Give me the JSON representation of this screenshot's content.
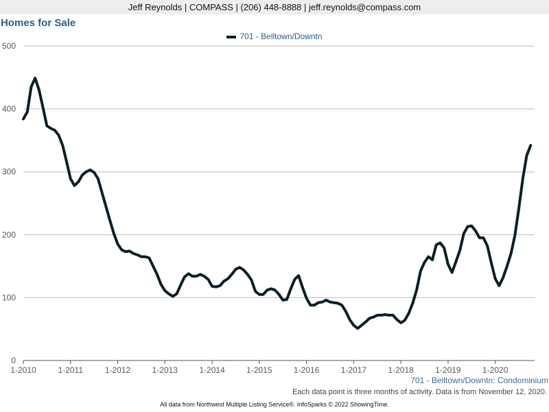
{
  "header": {
    "text": "Jeff Reynolds | COMPASS | (206) 448-8888 | jeff.reynolds@compass.com"
  },
  "footer": {
    "subtitle": "701 - Belltown/Downtn: Condominium",
    "note": "Each data point is three months of activity. Data is from November 12, 2020.",
    "source": "All data from Northwest Multiple Listing Service®. InfoSparks © 2022 ShowingTime."
  },
  "colors": {
    "line": "#0c1f26",
    "title": "#2e5c8a",
    "grid": "#bbbbbb",
    "axis_text": "#555555"
  },
  "chart_data": {
    "type": "line",
    "title": "Homes for Sale",
    "xlabel": "",
    "ylabel": "",
    "legend_position": "top-center",
    "grid": true,
    "ylim": [
      0,
      500
    ],
    "yticks": [
      0,
      100,
      200,
      300,
      400,
      500
    ],
    "xticks": [
      "1-2010",
      "1-2011",
      "1-2012",
      "1-2013",
      "1-2014",
      "1-2015",
      "1-2016",
      "1-2017",
      "1-2018",
      "1-2019",
      "1-2020"
    ],
    "x_start": "2010-01",
    "x_end": "2020-10",
    "series": [
      {
        "name": "701 - Belltown/Downtn",
        "values": [
          384,
          395,
          435,
          449,
          430,
          402,
          373,
          369,
          366,
          358,
          342,
          316,
          289,
          278,
          284,
          295,
          300,
          303,
          299,
          289,
          267,
          245,
          223,
          202,
          185,
          176,
          173,
          174,
          170,
          168,
          165,
          165,
          163,
          150,
          137,
          121,
          111,
          106,
          102,
          106,
          120,
          133,
          138,
          134,
          134,
          137,
          134,
          129,
          118,
          117,
          119,
          126,
          130,
          137,
          145,
          148,
          144,
          137,
          128,
          110,
          105,
          105,
          112,
          114,
          112,
          105,
          96,
          97,
          114,
          129,
          135,
          116,
          99,
          88,
          88,
          92,
          93,
          96,
          93,
          92,
          91,
          88,
          78,
          65,
          56,
          51,
          56,
          61,
          67,
          69,
          72,
          72,
          73,
          72,
          72,
          65,
          60,
          64,
          75,
          91,
          112,
          142,
          156,
          165,
          160,
          184,
          187,
          179,
          153,
          140,
          157,
          175,
          202,
          213,
          214,
          206,
          195,
          195,
          182,
          155,
          130,
          119,
          132,
          150,
          170,
          199,
          242,
          289,
          326,
          342
        ]
      }
    ]
  }
}
